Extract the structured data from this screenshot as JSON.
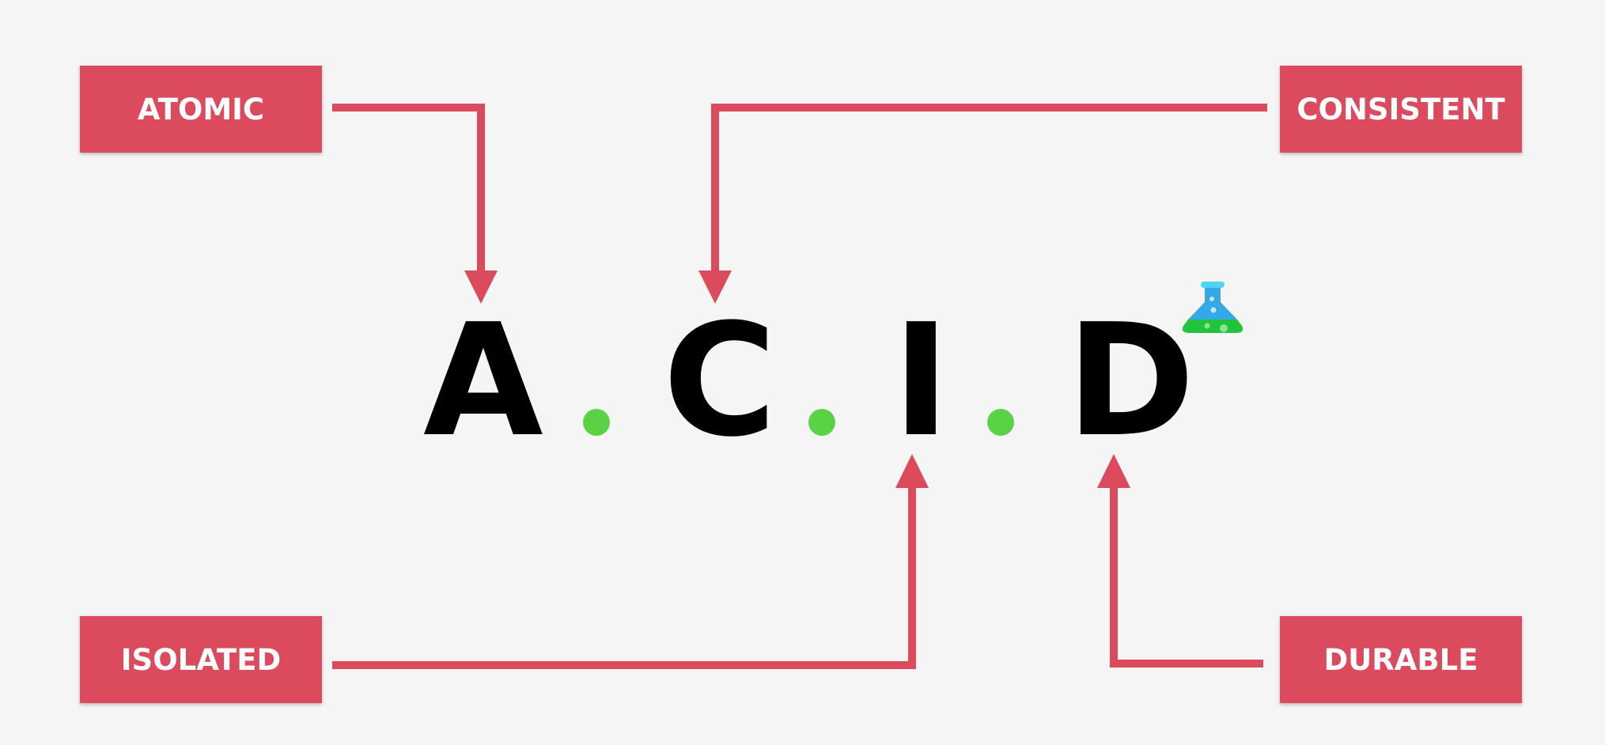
{
  "labels": {
    "atomic": "ATOMIC",
    "consistent": "CONSISTENT",
    "isolated": "ISOLATED",
    "durable": "DURABLE"
  },
  "acronym": {
    "letters": [
      "A",
      "C",
      "I",
      "D"
    ]
  },
  "colors": {
    "background": "#f5f5f5",
    "label_box": "#db4a5d",
    "arrow": "#db4a5d",
    "dot": "#5bd146",
    "letter": "#000000"
  },
  "icons": {
    "flask": "flask-icon"
  }
}
